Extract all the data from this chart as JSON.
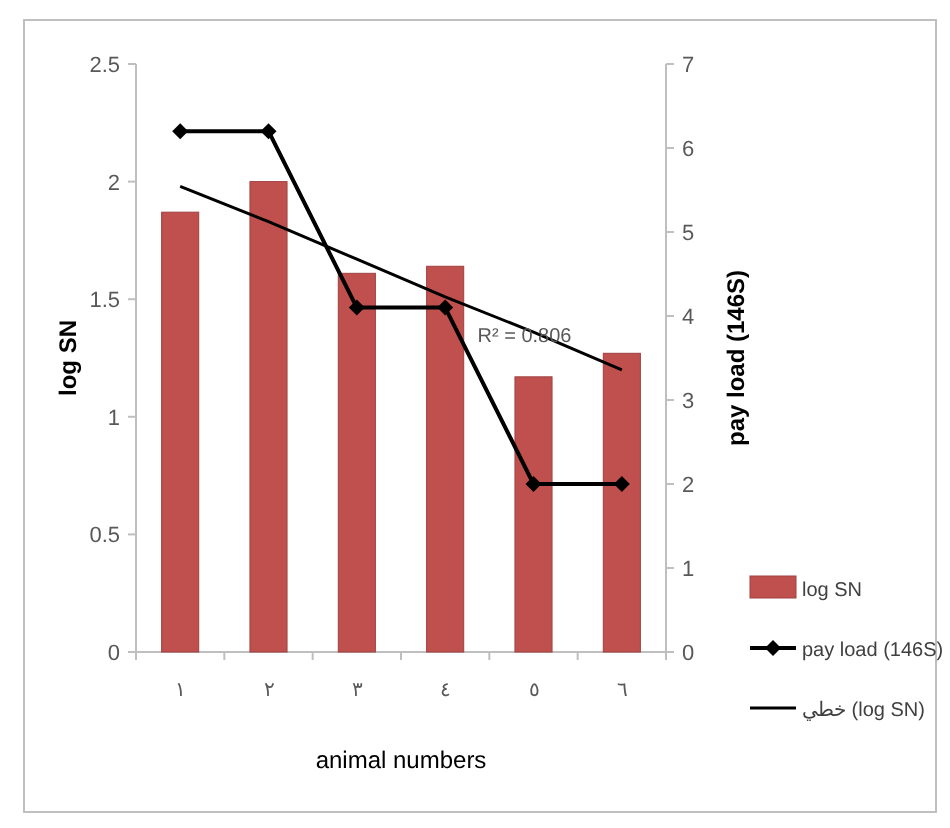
{
  "chart_data": {
    "type": "bar",
    "xlabel": "animal numbers",
    "ylabel": "log SN",
    "y2label": "pay load (146S)",
    "categories": [
      "١",
      "٢",
      "٣",
      "٤",
      "٥",
      "٦"
    ],
    "ylim": [
      0,
      2.5
    ],
    "yticks": [
      0,
      0.5,
      1,
      1.5,
      2,
      2.5
    ],
    "y2lim": [
      0,
      7
    ],
    "y2ticks": [
      0,
      1,
      2,
      3,
      4,
      5,
      6,
      7
    ],
    "grid": false,
    "legend": "bottom right",
    "series": [
      {
        "name": "log SN",
        "color": "#c0504d",
        "values": [
          1.87,
          2.0,
          1.61,
          1.64,
          1.17,
          1.27
        ]
      },
      {
        "name": "pay load (146S)",
        "type": "line",
        "axis": "y2",
        "color": "#000000",
        "marker": "diamond",
        "values": [
          6.2,
          6.2,
          4.1,
          4.1,
          2.0,
          2.0
        ]
      },
      {
        "name": "خطي (log SN)",
        "type": "line",
        "color": "#000000",
        "marker": "none",
        "values": [
          1.98,
          1.83,
          1.67,
          1.51,
          1.36,
          1.2
        ]
      }
    ],
    "annotations": [
      "R² = 0.806"
    ]
  }
}
